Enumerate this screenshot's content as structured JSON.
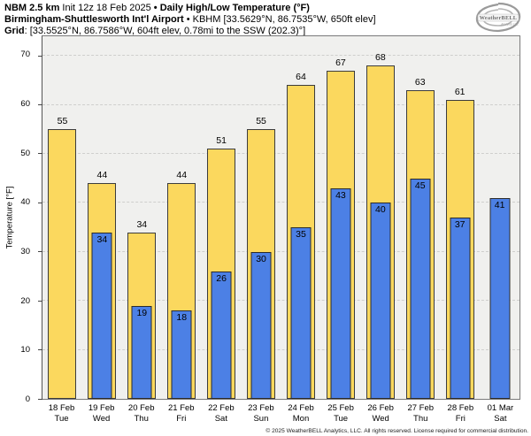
{
  "header": {
    "line1": {
      "model": "NBM 2.5 km",
      "init": " Init 12z 18 Feb 2025 ",
      "sep": "•",
      "product": " Daily High/Low Temperature (°F)"
    },
    "line2": {
      "station": "Birmingham-Shuttlesworth Int'l Airport",
      "sep": " • ",
      "station_info": "KBHM [33.5629°N, 86.7535°W, 650ft elev]"
    },
    "line3": {
      "label": "Grid",
      "value": ": [33.5525°N, 86.7586°W, 604ft elev, 0.78mi to the SSW (202.3)°]"
    }
  },
  "logo": {
    "brand": "WeatherBELL",
    "sub": "Analytics LLC"
  },
  "chart_data": {
    "type": "bar",
    "categories": [
      {
        "date": "18 Feb",
        "day": "Tue"
      },
      {
        "date": "19 Feb",
        "day": "Wed"
      },
      {
        "date": "20 Feb",
        "day": "Thu"
      },
      {
        "date": "21 Feb",
        "day": "Fri"
      },
      {
        "date": "22 Feb",
        "day": "Sat"
      },
      {
        "date": "23 Feb",
        "day": "Sun"
      },
      {
        "date": "24 Feb",
        "day": "Mon"
      },
      {
        "date": "25 Feb",
        "day": "Tue"
      },
      {
        "date": "26 Feb",
        "day": "Wed"
      },
      {
        "date": "27 Feb",
        "day": "Thu"
      },
      {
        "date": "28 Feb",
        "day": "Fri"
      },
      {
        "date": "01 Mar",
        "day": "Sat"
      }
    ],
    "series": [
      {
        "name": "High",
        "color": "#fbd85e",
        "values": [
          55,
          44,
          34,
          44,
          51,
          55,
          64,
          67,
          68,
          63,
          61,
          null
        ]
      },
      {
        "name": "Low",
        "color": "#4c80e5",
        "values": [
          null,
          34,
          19,
          18,
          26,
          30,
          35,
          43,
          40,
          45,
          37,
          41
        ]
      }
    ],
    "title": "NBM 2.5 km Init 12z 18 Feb 2025 • Daily High/Low Temperature (°F)",
    "xlabel": "",
    "ylabel": "Temperature [°F]",
    "ylim": [
      0,
      74
    ],
    "yticks": [
      0,
      10,
      20,
      30,
      40,
      50,
      60,
      70
    ],
    "grid": "horizontal-dashed",
    "legend": "none"
  },
  "footer": {
    "copyright": "© 2025 WeatherBELL Analytics, LLC. All rights reserved. License required for commercial distribution."
  }
}
